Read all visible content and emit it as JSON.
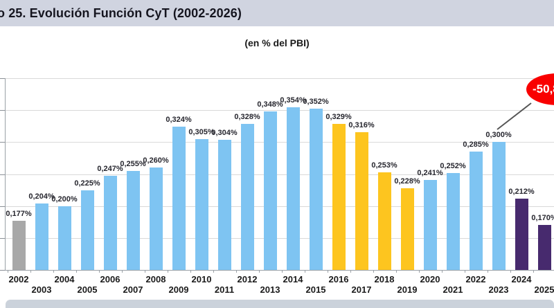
{
  "header": {
    "title": "o 25. Evolución Función CyT (2002-2026)"
  },
  "chart_data": {
    "type": "bar",
    "title": "(en % del PBI)",
    "categories": [
      "2002",
      "2003",
      "2004",
      "2005",
      "2006",
      "2007",
      "2008",
      "2009",
      "2010",
      "2011",
      "2012",
      "2013",
      "2014",
      "2015",
      "2016",
      "2017",
      "2018",
      "2019",
      "2020",
      "2021",
      "2022",
      "2023",
      "2024",
      "2025"
    ],
    "values": [
      0.177,
      0.204,
      0.2,
      0.225,
      0.247,
      0.255,
      0.26,
      0.324,
      0.305,
      0.304,
      0.328,
      0.348,
      0.354,
      0.352,
      0.329,
      0.316,
      0.253,
      0.228,
      0.241,
      0.252,
      0.285,
      0.3,
      0.212,
      0.17
    ],
    "labels": [
      "0,177%",
      "0,204%",
      "0,200%",
      "0,225%",
      "0,247%",
      "0,255%",
      "0,260%",
      "0,324%",
      "0,305%",
      "0,304%",
      "0,328%",
      "0,348%",
      "0,354%",
      "0,352%",
      "0,329%",
      "0,316%",
      "0,253%",
      "0,228%",
      "0,241%",
      "0,252%",
      "0,285%",
      "0,300%",
      "0,212%",
      "0,170%"
    ],
    "bar_roles": [
      "gray",
      "blue",
      "blue",
      "blue",
      "blue",
      "blue",
      "blue",
      "blue",
      "blue",
      "blue",
      "blue",
      "blue",
      "blue",
      "blue",
      "yellow",
      "yellow",
      "yellow",
      "yellow",
      "blue",
      "blue",
      "blue",
      "blue",
      "purple",
      "purple"
    ],
    "palette": {
      "gray": "#a8a8a8",
      "blue": "#7ec4f2",
      "yellow": "#fdc51f",
      "purple": "#472a6e"
    },
    "ylim": [
      0.1,
      0.4
    ],
    "ytick_step": 0.05,
    "grid": true,
    "legend_position": "none",
    "ytick_labels_visible": false,
    "annotation": {
      "text": "-50,8",
      "shape": "ellipse",
      "fill": "#f90000",
      "text_color": "#ffffff",
      "points_to_category": "2023"
    }
  }
}
